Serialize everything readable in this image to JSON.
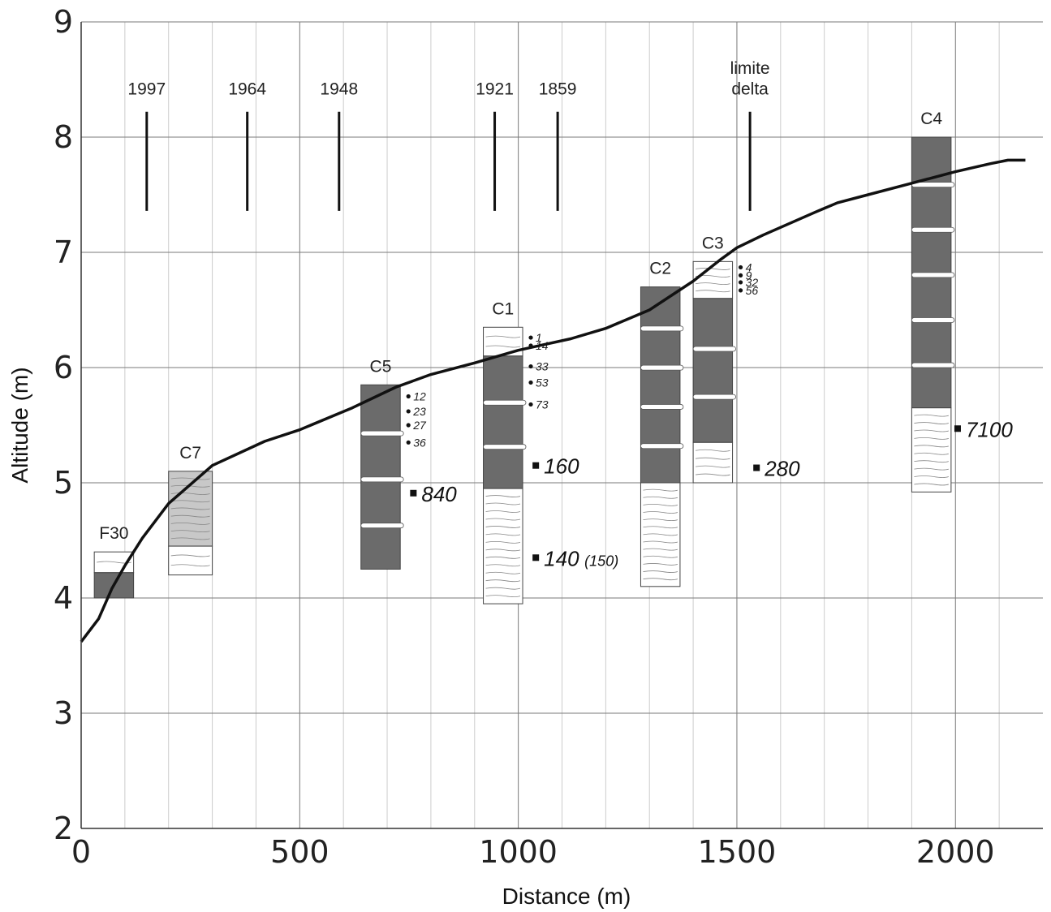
{
  "chart_data": {
    "type": "line",
    "xlabel": "Distance (m)",
    "ylabel": "Altitude (m)",
    "xlim": [
      0,
      2200
    ],
    "ylim": [
      2,
      9
    ],
    "x_ticks": [
      0,
      500,
      1000,
      1500,
      2000
    ],
    "y_ticks": [
      2,
      3,
      4,
      5,
      6,
      7,
      8,
      9
    ],
    "grid": true,
    "profile": {
      "x": [
        0,
        40,
        70,
        100,
        140,
        200,
        300,
        420,
        500,
        620,
        720,
        800,
        900,
        1000,
        1060,
        1120,
        1200,
        1300,
        1400,
        1460,
        1500,
        1560,
        1680,
        1730,
        1800,
        1900,
        2000,
        2080,
        2120,
        2160
      ],
      "y": [
        3.62,
        3.82,
        4.08,
        4.28,
        4.52,
        4.82,
        5.15,
        5.36,
        5.46,
        5.65,
        5.83,
        5.94,
        6.04,
        6.15,
        6.2,
        6.25,
        6.34,
        6.5,
        6.75,
        6.93,
        7.04,
        7.15,
        7.35,
        7.43,
        7.5,
        7.6,
        7.7,
        7.77,
        7.8,
        7.8
      ]
    },
    "shorelines": [
      {
        "label": "1997",
        "x": 150
      },
      {
        "label": "1964",
        "x": 380
      },
      {
        "label": "1948",
        "x": 590
      },
      {
        "label": "1921",
        "x": 946
      },
      {
        "label": "1859",
        "x": 1090
      },
      {
        "label": "limite",
        "label2": "delta",
        "x": 1530
      }
    ],
    "cores": [
      {
        "name": "F30",
        "x_left": 30,
        "x_right": 120,
        "top": 4.4,
        "bottom": 4.0,
        "layers": [
          {
            "top": 4.4,
            "bottom": 4.22,
            "fill": "light"
          },
          {
            "top": 4.22,
            "bottom": 4.0,
            "fill": "dark"
          }
        ],
        "samples": []
      },
      {
        "name": "C7",
        "x_left": 200,
        "x_right": 300,
        "top": 5.1,
        "bottom": 4.2,
        "layers": [
          {
            "top": 5.1,
            "bottom": 4.45,
            "fill": "grey"
          },
          {
            "top": 4.45,
            "bottom": 4.2,
            "fill": "light"
          }
        ],
        "samples": []
      },
      {
        "name": "C5",
        "x_left": 640,
        "x_right": 730,
        "top": 5.85,
        "bottom": 4.25,
        "layers": [
          {
            "top": 5.85,
            "bottom": 4.25,
            "fill": "dark"
          }
        ],
        "samples": [
          {
            "label": "12",
            "y": 5.75
          },
          {
            "label": "23",
            "y": 5.62
          },
          {
            "label": "27",
            "y": 5.5
          },
          {
            "label": "36",
            "y": 5.35
          }
        ]
      },
      {
        "name": "C1",
        "x_left": 920,
        "x_right": 1010,
        "top": 6.35,
        "bottom": 3.95,
        "layers": [
          {
            "top": 6.35,
            "bottom": 6.1,
            "fill": "light"
          },
          {
            "top": 6.1,
            "bottom": 4.95,
            "fill": "dark"
          },
          {
            "top": 4.95,
            "bottom": 3.95,
            "fill": "light"
          }
        ],
        "samples": [
          {
            "label": "1",
            "y": 6.26
          },
          {
            "label": "14",
            "y": 6.19
          },
          {
            "label": "33",
            "y": 6.01
          },
          {
            "label": "53",
            "y": 5.87
          },
          {
            "label": "73",
            "y": 5.68
          }
        ]
      },
      {
        "name": "C2",
        "x_left": 1280,
        "x_right": 1370,
        "top": 6.7,
        "bottom": 4.1,
        "layers": [
          {
            "top": 6.7,
            "bottom": 5.0,
            "fill": "dark"
          },
          {
            "top": 5.0,
            "bottom": 4.1,
            "fill": "light"
          }
        ],
        "samples": []
      },
      {
        "name": "C3",
        "x_left": 1400,
        "x_right": 1490,
        "top": 6.92,
        "bottom": 5.0,
        "layers": [
          {
            "top": 6.92,
            "bottom": 6.6,
            "fill": "light"
          },
          {
            "top": 6.6,
            "bottom": 5.35,
            "fill": "dark"
          },
          {
            "top": 5.35,
            "bottom": 5.0,
            "fill": "light"
          }
        ],
        "samples": [
          {
            "label": "4",
            "y": 6.87
          },
          {
            "label": "9",
            "y": 6.8
          },
          {
            "label": "32",
            "y": 6.74
          },
          {
            "label": "56",
            "y": 6.67
          }
        ]
      },
      {
        "name": "C4",
        "x_left": 1900,
        "x_right": 1990,
        "top": 8.0,
        "bottom": 4.92,
        "layers": [
          {
            "top": 8.0,
            "bottom": 5.65,
            "fill": "dark"
          },
          {
            "top": 5.65,
            "bottom": 4.92,
            "fill": "light"
          }
        ],
        "samples": []
      }
    ],
    "ages": [
      {
        "label": "840",
        "x": 760,
        "y": 4.91
      },
      {
        "label": "160",
        "x": 1040,
        "y": 5.15
      },
      {
        "label": "140",
        "sub": "(150)",
        "x": 1040,
        "y": 4.35
      },
      {
        "label": "280",
        "x": 1545,
        "y": 5.13
      },
      {
        "label": "7100",
        "x": 2005,
        "y": 5.47
      }
    ],
    "colors": {
      "dark": "#6b6b6b",
      "grey": "#c8c8c8",
      "light": "#ffffff",
      "line": "#111111",
      "grid_major": "#7a7a7a",
      "grid_minor": "#cccccc"
    }
  }
}
